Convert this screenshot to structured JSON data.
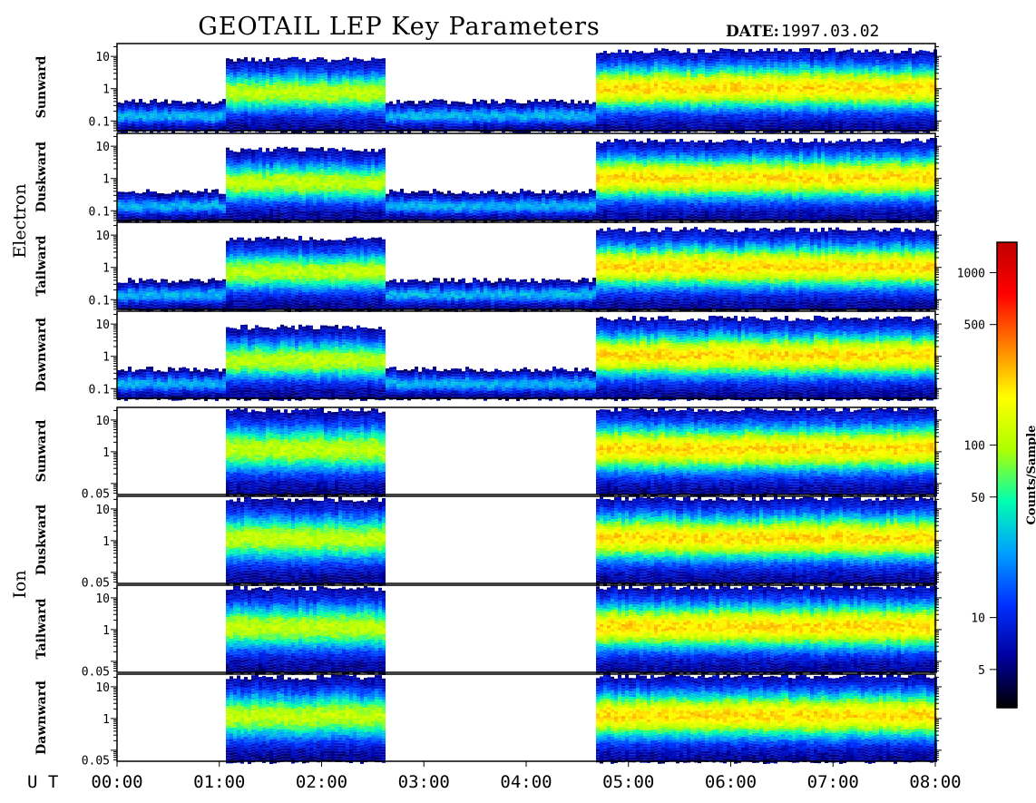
{
  "header": {
    "title": "GEOTAIL LEP Key Parameters",
    "date_label": "DATE:",
    "date_value": "1997.03.02"
  },
  "chart_data": {
    "type": "heatmap",
    "title": "GEOTAIL LEP Key Parameters",
    "time_axis": {
      "label": "U T",
      "ticks": [
        "00:00",
        "01:00",
        "02:00",
        "03:00",
        "04:00",
        "05:00",
        "06:00",
        "07:00",
        "08:00"
      ],
      "range_hours": [
        0,
        8
      ]
    },
    "y_scale": "log",
    "groups": [
      {
        "name": "Electron",
        "y_ticks": [
          "10",
          "1",
          "0.1"
        ],
        "y_tick_values": [
          10,
          1,
          0.1
        ],
        "ylim": [
          0.05,
          25
        ],
        "panels": [
          {
            "direction": "Sunward"
          },
          {
            "direction": "Duskward"
          },
          {
            "direction": "Tailward"
          },
          {
            "direction": "Dawnward"
          }
        ]
      },
      {
        "name": "Ion",
        "y_ticks": [
          "10",
          "1",
          "0.05"
        ],
        "y_tick_values": [
          10,
          1,
          0.05
        ],
        "ylim": [
          0.045,
          25
        ],
        "panels": [
          {
            "direction": "Sunward"
          },
          {
            "direction": "Duskward"
          },
          {
            "direction": "Tailward"
          },
          {
            "direction": "Dawnward"
          }
        ]
      }
    ],
    "colorbar": {
      "label": "Counts/Sample",
      "scale": "log",
      "range": [
        3,
        1500
      ],
      "ticks": [
        "1000",
        "500",
        "100",
        "50",
        "10",
        "5"
      ],
      "tick_values": [
        1000,
        500,
        100,
        50,
        10,
        5
      ],
      "colors": [
        "#000000",
        "#0000a0",
        "#0030ff",
        "#00a0ff",
        "#00ffb0",
        "#b0ff00",
        "#ffff00",
        "#ff8000",
        "#ff0000",
        "#c00000"
      ]
    },
    "features": [
      {
        "group": "Electron",
        "start_h": 0.0,
        "end_h": 1.05,
        "level": "weak",
        "y_top": 0.4
      },
      {
        "group": "Electron",
        "start_h": 1.05,
        "end_h": 2.6,
        "level": "moderate",
        "y_top": 8
      },
      {
        "group": "Electron",
        "start_h": 2.6,
        "end_h": 4.68,
        "level": "weak",
        "y_top": 0.4
      },
      {
        "group": "Electron",
        "start_h": 4.68,
        "end_h": 8.0,
        "level": "strong",
        "y_top": 15
      },
      {
        "group": "Ion",
        "start_h": 1.05,
        "end_h": 2.6,
        "level": "moderate",
        "y_top": 20
      },
      {
        "group": "Ion",
        "start_h": 4.68,
        "end_h": 8.0,
        "level": "strong",
        "y_top": 22
      }
    ]
  }
}
